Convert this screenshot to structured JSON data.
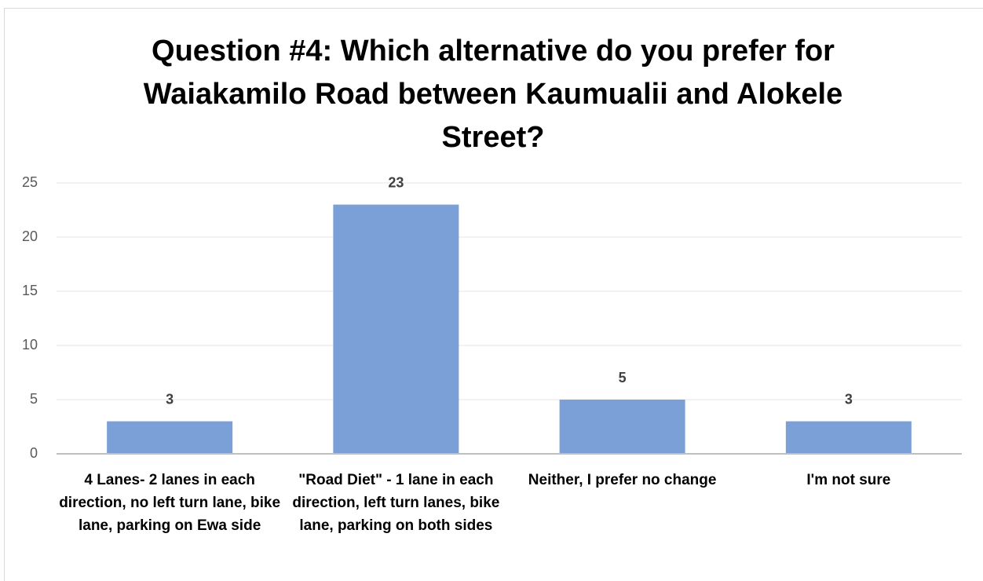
{
  "chart_data": {
    "type": "bar",
    "title": "Question #4: Which alternative do you prefer for Waiakamilo Road between Kaumualii and Alokele Street?",
    "categories": [
      "4 Lanes- 2 lanes in each direction, no left turn lane, bike lane, parking on Ewa side",
      "\"Road Diet\" - 1 lane in each direction, left turn lanes, bike lane, parking on both sides",
      "Neither, I prefer no change",
      "I'm not sure"
    ],
    "values": [
      3,
      23,
      5,
      3
    ],
    "color": "#7ba0d8",
    "ylim": [
      0,
      25
    ],
    "yticks": [
      0,
      5,
      10,
      15,
      20,
      25
    ],
    "grid": true
  }
}
